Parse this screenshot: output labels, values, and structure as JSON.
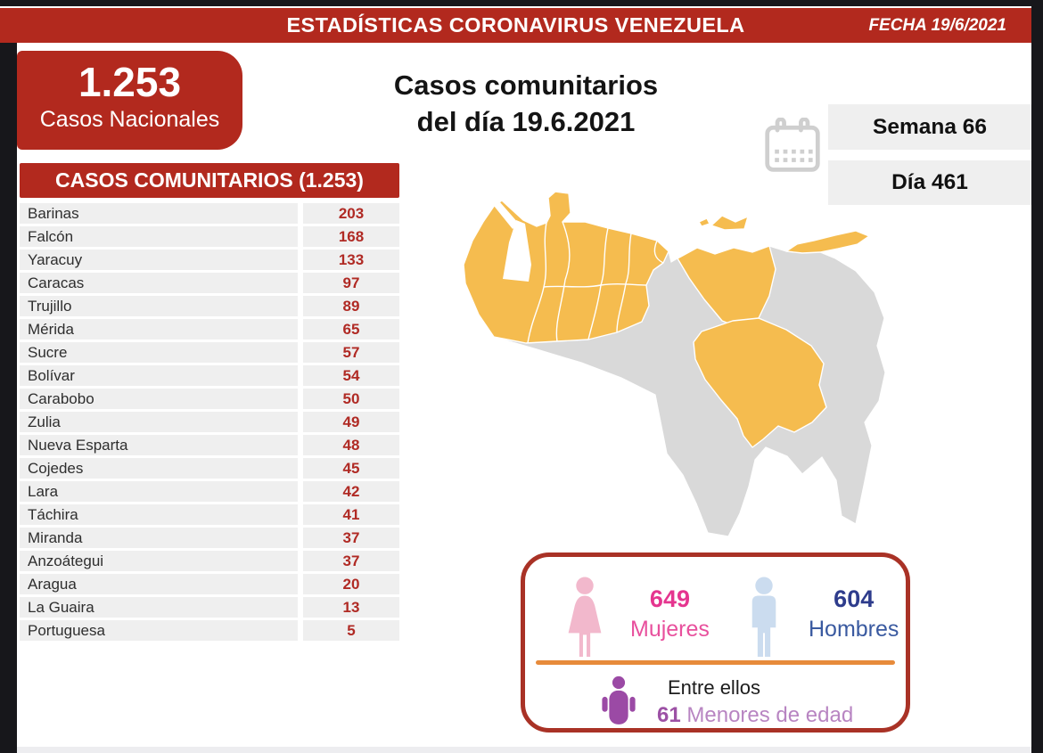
{
  "header": {
    "title": "ESTADÍSTICAS CORONAVIRUS VENEZUELA",
    "date": "FECHA 19/6/2021"
  },
  "national_box": {
    "value": "1.253",
    "label": "Casos Nacionales"
  },
  "main_title": {
    "line1": "Casos comunitarios",
    "line2": "del día 19.6.2021"
  },
  "calendar": {
    "week_label": "Semana 66",
    "day_label": "Día 461"
  },
  "cases_table": {
    "header": "CASOS COMUNITARIOS (1.253)",
    "rows": [
      {
        "state": "Barinas",
        "value": "203"
      },
      {
        "state": "Falcón",
        "value": "168"
      },
      {
        "state": "Yaracuy",
        "value": "133"
      },
      {
        "state": "Caracas",
        "value": "97"
      },
      {
        "state": "Trujillo",
        "value": "89"
      },
      {
        "state": "Mérida",
        "value": "65"
      },
      {
        "state": "Sucre",
        "value": "57"
      },
      {
        "state": "Bolívar",
        "value": "54"
      },
      {
        "state": "Carabobo",
        "value": "50"
      },
      {
        "state": "Zulia",
        "value": "49"
      },
      {
        "state": "Nueva Esparta",
        "value": "48"
      },
      {
        "state": "Cojedes",
        "value": "45"
      },
      {
        "state": "Lara",
        "value": "42"
      },
      {
        "state": "Táchira",
        "value": "41"
      },
      {
        "state": "Miranda",
        "value": "37"
      },
      {
        "state": "Anzoátegui",
        "value": "37"
      },
      {
        "state": "Aragua",
        "value": "20"
      },
      {
        "state": "La Guaira",
        "value": "13"
      },
      {
        "state": "Portuguesa",
        "value": "5"
      }
    ]
  },
  "demographics": {
    "women": {
      "value": "649",
      "label": "Mujeres"
    },
    "men": {
      "value": "604",
      "label": "Hombres"
    },
    "minors": {
      "prefix": "Entre ellos",
      "value": "61",
      "label": "Menores de edad"
    }
  },
  "colors": {
    "red": "#B2291E",
    "value_red": "#B02A24",
    "dark_red_border": "#A93226",
    "row_gray": "#EFEFEF",
    "map_yellow": "#F5BC4F",
    "map_gray": "#D9D9D9",
    "pink": "#E5358F",
    "pink_light": "#E8509D",
    "pink_icon": "#F2B8CC",
    "blue_dark": "#2E3C8C",
    "blue": "#3A5AA0",
    "blue_icon": "#CBDCEF",
    "purple": "#9C51A5",
    "purple_light": "#B885C2",
    "purple_icon": "#9B4AA5",
    "orange": "#E78B3B",
    "icon_gray": "#CFCFCF"
  },
  "chart_data": {
    "type": "table",
    "title": "CASOS COMUNITARIOS (1.253)",
    "categories": [
      "Barinas",
      "Falcón",
      "Yaracuy",
      "Caracas",
      "Trujillo",
      "Mérida",
      "Sucre",
      "Bolívar",
      "Carabobo",
      "Zulia",
      "Nueva Esparta",
      "Cojedes",
      "Lara",
      "Táchira",
      "Miranda",
      "Anzoátegui",
      "Aragua",
      "La Guaira",
      "Portuguesa"
    ],
    "values": [
      203,
      168,
      133,
      97,
      89,
      65,
      57,
      54,
      50,
      49,
      48,
      45,
      42,
      41,
      37,
      37,
      20,
      13,
      5
    ],
    "totals": {
      "casos_nacionales": 1253,
      "casos_comunitarios": 1253,
      "mujeres": 649,
      "hombres": 604,
      "menores_de_edad": 61
    },
    "date": "19.6.2021",
    "semana": 66,
    "dia": 461
  }
}
